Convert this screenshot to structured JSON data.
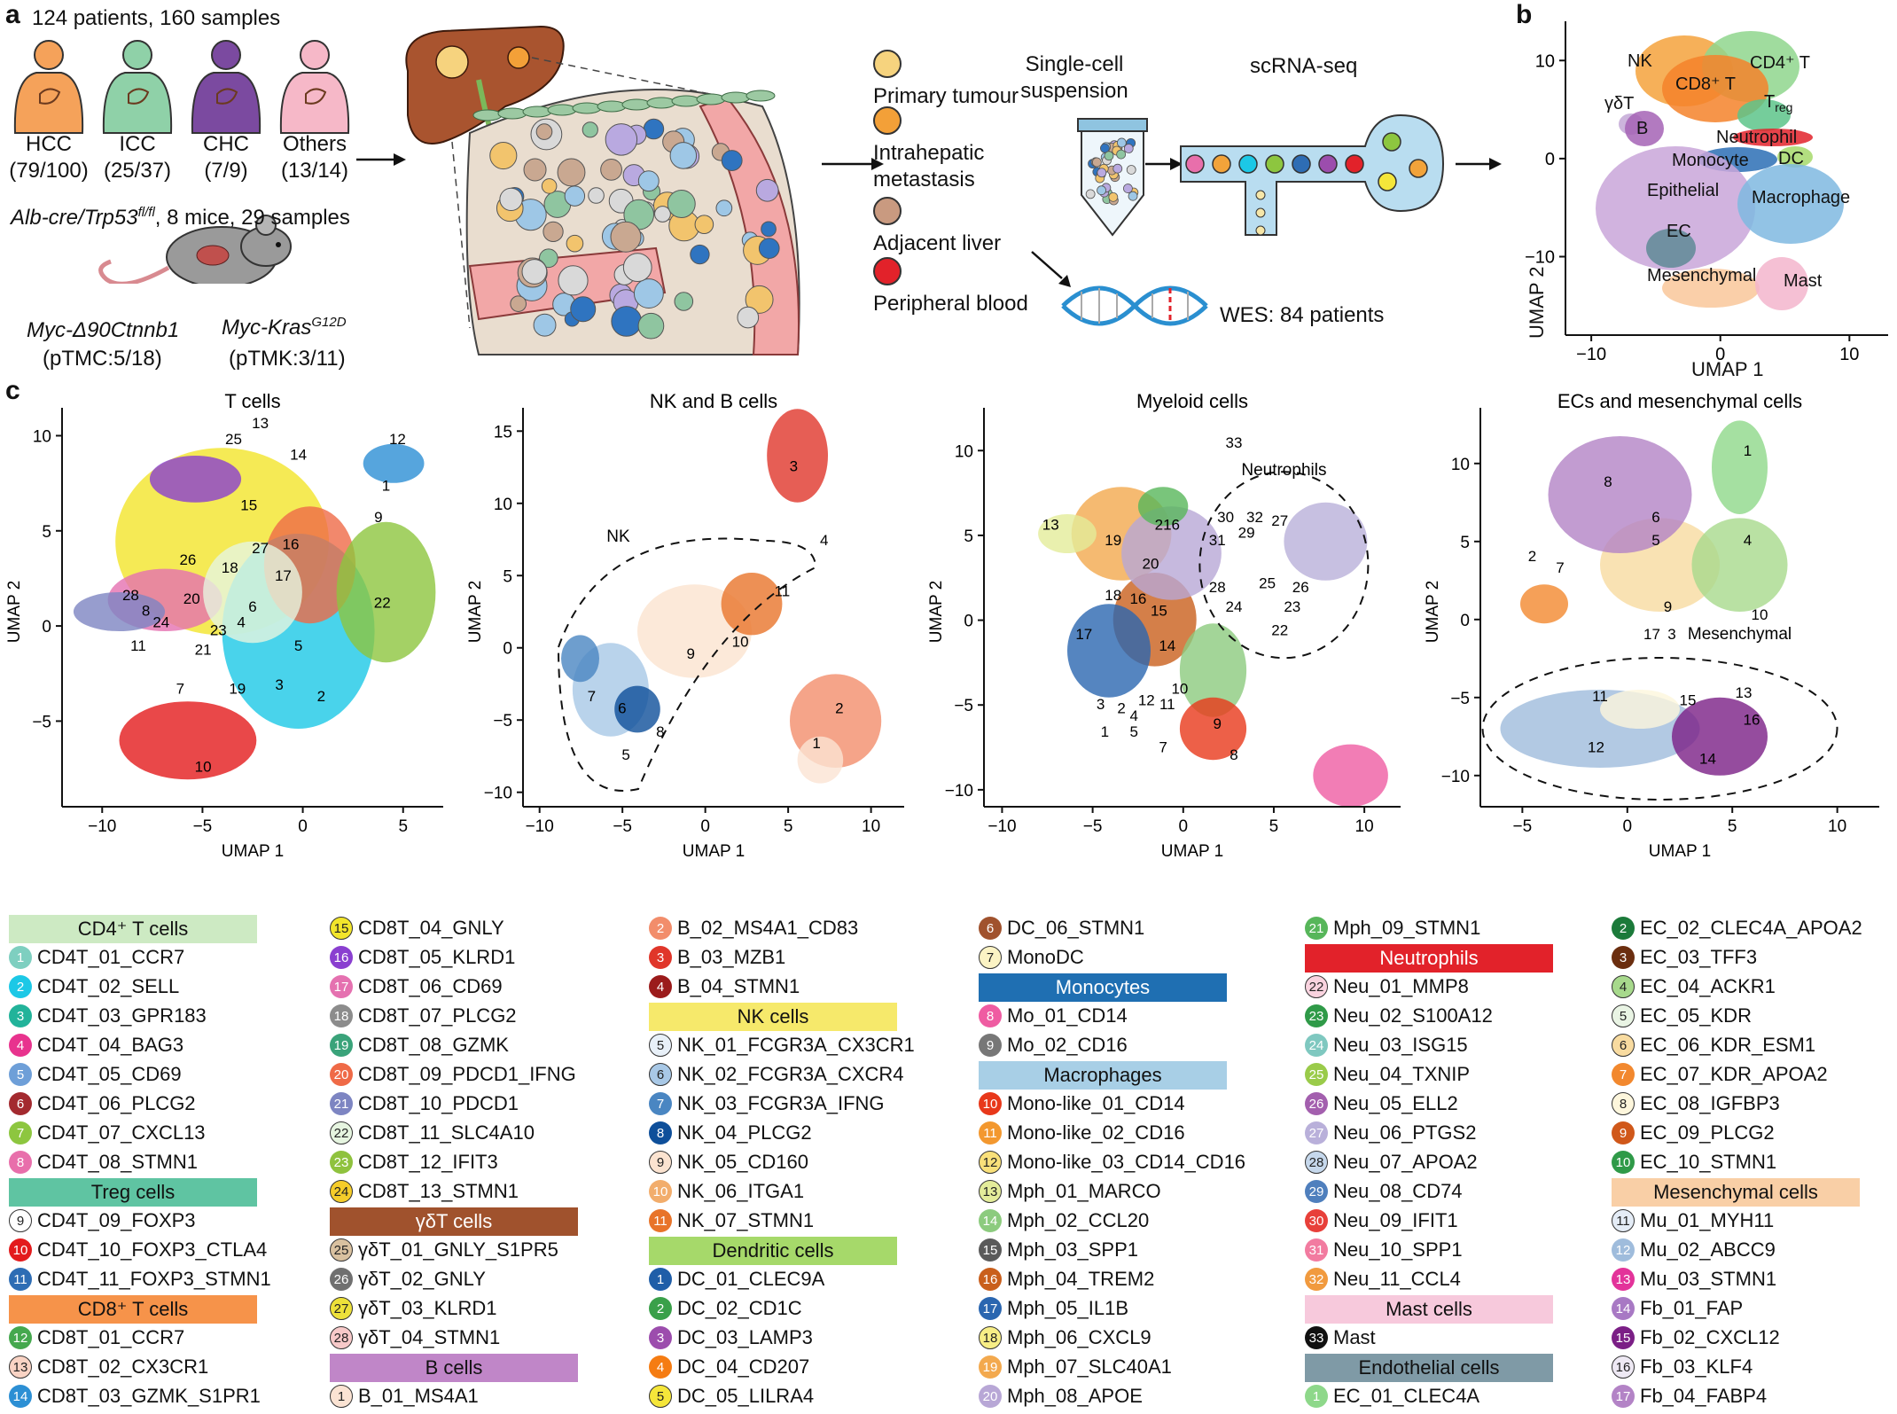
{
  "panel_a": {
    "label": "a",
    "cohort_text": "124 patients, 160 samples",
    "tumour_types": [
      {
        "name": "HCC",
        "counts": "(79/100)",
        "color": "#f5a25a"
      },
      {
        "name": "ICC",
        "counts": "(25/37)",
        "color": "#8fd1a8"
      },
      {
        "name": "CHC",
        "counts": "(7/9)",
        "color": "#7b4aa0"
      },
      {
        "name": "Others",
        "counts": "(13/14)",
        "color": "#f6b8c8"
      }
    ],
    "mouse_text_1": "Alb-cre/Trp53",
    "mouse_text_sup": "fl/fl",
    "mouse_text_2": ", 8 mice, 29 samples",
    "model_1_name": "Myc-Δ90Ctnnb1",
    "model_1_counts": "(pTMC:5/18)",
    "model_2_name": "Myc-Kras",
    "model_2_sup": "G12D",
    "model_2_counts": "(pTMK:3/11)",
    "sample_types": [
      {
        "label": "Primary tumour",
        "color": "#f6d37e"
      },
      {
        "label": "Intrahepatic metastasis",
        "color": "#f3a038"
      },
      {
        "label": "Adjacent liver",
        "color": "#c99a80"
      },
      {
        "label": "Peripheral blood",
        "color": "#e2222a"
      }
    ],
    "sample_type_lines": {
      "im1": "Intrahepatic",
      "im2": "metastasis"
    },
    "single_cell_1": "Single-cell",
    "single_cell_2": "suspension",
    "scrna": "scRNA-seq",
    "wes": "WES: 84 patients"
  },
  "panel_b": {
    "label": "b",
    "xlabel": "UMAP 1",
    "ylabel": "UMAP 2",
    "xticks": [
      "−10",
      "0",
      "10"
    ],
    "yticks": [
      "10",
      "0",
      "−10"
    ],
    "clusters": [
      {
        "name": "NK",
        "color": "#f5a23c"
      },
      {
        "name": "CD4⁺ T",
        "color": "#8fd68d"
      },
      {
        "name": "CD8⁺ T",
        "color": "#f5822a"
      },
      {
        "name": "γδT",
        "color": "#c3a8d6"
      },
      {
        "name": "B",
        "color": "#a463b5"
      },
      {
        "name": "Treg",
        "color": "#5dc48a"
      },
      {
        "name": "Neutrophil",
        "color": "#e2222a"
      },
      {
        "name": "Monocyte",
        "color": "#2b6fb5"
      },
      {
        "name": "DC",
        "color": "#a6d96a"
      },
      {
        "name": "Epithelial",
        "color": "#c9a6d9"
      },
      {
        "name": "Macrophage",
        "color": "#7fb8e0"
      },
      {
        "name": "EC",
        "color": "#5f8a96"
      },
      {
        "name": "Mesenchymal",
        "color": "#f9c79a"
      },
      {
        "name": "Mast",
        "color": "#f3b5cc"
      }
    ],
    "treg_main": "T",
    "treg_sub": "reg"
  },
  "panel_c": {
    "label": "c",
    "plots": [
      {
        "title": "T cells",
        "xlabel": "UMAP 1",
        "ylabel": "UMAP 2",
        "xticks": [
          "−10",
          "−5",
          "0",
          "5"
        ],
        "yticks": [
          "10",
          "5",
          "0",
          "−5"
        ],
        "cluster_labels": [
          "13",
          "25",
          "14",
          "12",
          "1",
          "9",
          "15",
          "27",
          "16",
          "26",
          "18",
          "17",
          "28",
          "8",
          "20",
          "6",
          "24",
          "22",
          "4",
          "23",
          "11",
          "21",
          "5",
          "7",
          "19",
          "3",
          "2",
          "10"
        ]
      },
      {
        "title": "NK and B cells",
        "xlabel": "UMAP 1",
        "ylabel": "UMAP 2",
        "xticks": [
          "−10",
          "−5",
          "0",
          "5",
          "10"
        ],
        "yticks": [
          "15",
          "10",
          "5",
          "0",
          "−5",
          "−10"
        ],
        "annotation": "NK",
        "cluster_labels": [
          "3",
          "4",
          "11",
          "10",
          "9",
          "7",
          "6",
          "8",
          "5",
          "2",
          "1"
        ]
      },
      {
        "title": "Myeloid cells",
        "xlabel": "UMAP 1",
        "ylabel": "UMAP 2",
        "xticks": [
          "−10",
          "−5",
          "0",
          "5",
          "10"
        ],
        "yticks": [
          "10",
          "5",
          "0",
          "−5",
          "−10"
        ],
        "annotation": "Neutrophils",
        "cluster_labels": [
          "33",
          "13",
          "19",
          "21",
          "6",
          "30",
          "32",
          "27",
          "29",
          "31",
          "20",
          "18",
          "16",
          "15",
          "28",
          "24",
          "25",
          "26",
          "23",
          "22",
          "17",
          "14",
          "10",
          "3",
          "2",
          "12",
          "11",
          "4",
          "1",
          "5",
          "9",
          "7",
          "8"
        ]
      },
      {
        "title": "ECs and mesenchymal cells",
        "xlabel": "UMAP 1",
        "ylabel": "UMAP 2",
        "xticks": [
          "−5",
          "0",
          "5",
          "10"
        ],
        "yticks": [
          "10",
          "5",
          "0",
          "−5",
          "−10"
        ],
        "annotation": "Mesenchymal",
        "cluster_labels": [
          "1",
          "8",
          "6",
          "5",
          "4",
          "2",
          "7",
          "9",
          "10",
          "17",
          "3",
          "11",
          "15",
          "13",
          "16",
          "12",
          "14"
        ]
      }
    ]
  },
  "legend": {
    "columns": [
      [
        {
          "type": "header",
          "label": "CD4⁺ T cells",
          "color": "#cdeac3"
        },
        {
          "n": "1",
          "label": "CD4T_01_CCR7",
          "color": "#7ecfc0"
        },
        {
          "n": "2",
          "label": "CD4T_02_SELL",
          "color": "#1cc8e6"
        },
        {
          "n": "3",
          "label": "CD4T_03_GPR183",
          "color": "#22b39a"
        },
        {
          "n": "4",
          "label": "CD4T_04_BAG3",
          "color": "#e8338e"
        },
        {
          "n": "5",
          "label": "CD4T_05_CD69",
          "color": "#6e9fd8"
        },
        {
          "n": "6",
          "label": "CD4T_06_PLCG2",
          "color": "#a32a2f"
        },
        {
          "n": "7",
          "label": "CD4T_07_CXCL13",
          "color": "#8dc63f"
        },
        {
          "n": "8",
          "label": "CD4T_08_STMN1",
          "color": "#e86fab"
        },
        {
          "type": "header",
          "label": "Treg cells",
          "color": "#5fc4a2",
          "sub": true
        },
        {
          "n": "9",
          "label": "CD4T_09_FOXP3",
          "color": "#ffffff",
          "light": true
        },
        {
          "n": "10",
          "label": "CD4T_10_FOXP3_CTLA4",
          "color": "#e31a1c"
        },
        {
          "n": "11",
          "label": "CD4T_11_FOXP3_STMN1",
          "color": "#2e6db4"
        },
        {
          "type": "header",
          "label": "CD8⁺ T cells",
          "color": "#f6934a"
        },
        {
          "n": "12",
          "label": "CD8T_01_CCR7",
          "color": "#45a84e"
        },
        {
          "n": "13",
          "label": "CD8T_02_CX3CR1",
          "color": "#f9d3c4",
          "light": true
        },
        {
          "n": "14",
          "label": "CD8T_03_GZMK_S1PR1",
          "color": "#2c8fd4"
        }
      ],
      [
        {
          "n": "15",
          "label": "CD8T_04_GNLY",
          "color": "#f2e52b",
          "light": true
        },
        {
          "n": "16",
          "label": "CD8T_05_KLRD1",
          "color": "#8a3fd0"
        },
        {
          "n": "17",
          "label": "CD8T_06_CD69",
          "color": "#e571b0"
        },
        {
          "n": "18",
          "label": "CD8T_07_PLCG2",
          "color": "#8c8c8c"
        },
        {
          "n": "19",
          "label": "CD8T_08_GZMK",
          "color": "#3aa37a"
        },
        {
          "n": "20",
          "label": "CD8T_09_PDCD1_IFNG",
          "color": "#ef6a47"
        },
        {
          "n": "21",
          "label": "CD8T_10_PDCD1",
          "color": "#7d85c2"
        },
        {
          "n": "22",
          "label": "CD8T_11_SLC4A10",
          "color": "#e6f5e0",
          "light": true
        },
        {
          "n": "23",
          "label": "CD8T_12_IFIT3",
          "color": "#8fc23e"
        },
        {
          "n": "24",
          "label": "CD8T_13_STMN1",
          "color": "#f5cc2a",
          "light": true
        },
        {
          "type": "header",
          "label": "γδT cells",
          "color": "#a0522d",
          "dark": true
        },
        {
          "n": "25",
          "label": "γδT_01_GNLY_S1PR5",
          "color": "#d9c1a0",
          "light": true
        },
        {
          "n": "26",
          "label": "γδT_02_GNLY",
          "color": "#707070"
        },
        {
          "n": "27",
          "label": "γδT_03_KLRD1",
          "color": "#ede13a",
          "light": true
        },
        {
          "n": "28",
          "label": "γδT_04_STMN1",
          "color": "#f7c9c9",
          "light": true
        },
        {
          "type": "header",
          "label": "B cells",
          "color": "#c086c8"
        },
        {
          "n": "1",
          "label": "B_01_MS4A1",
          "color": "#fbe3d3",
          "light": true
        }
      ],
      [
        {
          "n": "2",
          "label": "B_02_MS4A1_CD83",
          "color": "#f28d6b"
        },
        {
          "n": "3",
          "label": "B_03_MZB1",
          "color": "#e0362a"
        },
        {
          "n": "4",
          "label": "B_04_STMN1",
          "color": "#9b1b1b"
        },
        {
          "type": "header",
          "label": "NK cells",
          "color": "#f6e96b"
        },
        {
          "n": "5",
          "label": "NK_01_FCGR3A_CX3CR1",
          "color": "#e8f0f8",
          "light": true
        },
        {
          "n": "6",
          "label": "NK_02_FCGR3A_CXCR4",
          "color": "#a8c8e6",
          "light": true
        },
        {
          "n": "7",
          "label": "NK_03_FCGR3A_IFNG",
          "color": "#4a86c2"
        },
        {
          "n": "8",
          "label": "NK_04_PLCG2",
          "color": "#0e4f9a"
        },
        {
          "n": "9",
          "label": "NK_05_CD160",
          "color": "#fbe3d0",
          "light": true
        },
        {
          "n": "10",
          "label": "NK_06_ITGA1",
          "color": "#f2ad6c"
        },
        {
          "n": "11",
          "label": "NK_07_STMN1",
          "color": "#e8742a"
        },
        {
          "type": "header",
          "label": "Dendritic cells",
          "color": "#a6d96a"
        },
        {
          "n": "1",
          "label": "DC_01_CLEC9A",
          "color": "#1f5ea8"
        },
        {
          "n": "2",
          "label": "DC_02_CD1C",
          "color": "#3aa04a"
        },
        {
          "n": "3",
          "label": "DC_03_LAMP3",
          "color": "#9c4dad"
        },
        {
          "n": "4",
          "label": "DC_04_CD207",
          "color": "#f57c12"
        },
        {
          "n": "5",
          "label": "DC_05_LILRA4",
          "color": "#f5e63a",
          "light": true
        }
      ],
      [
        {
          "n": "6",
          "label": "DC_06_STMN1",
          "color": "#a0522d"
        },
        {
          "n": "7",
          "label": "MonoDC",
          "color": "#fbf3c4",
          "light": true
        },
        {
          "type": "header",
          "label": "Monocytes",
          "color": "#1f6fb2",
          "dark": true
        },
        {
          "n": "8",
          "label": "Mo_01_CD14",
          "color": "#ef5ca2"
        },
        {
          "n": "9",
          "label": "Mo_02_CD16",
          "color": "#777777"
        },
        {
          "type": "header",
          "label": "Macrophages",
          "color": "#a8cfe6"
        },
        {
          "n": "10",
          "label": "Mono-like_01_CD14",
          "color": "#e8381a"
        },
        {
          "n": "11",
          "label": "Mono-like_02_CD16",
          "color": "#f3982f"
        },
        {
          "n": "12",
          "label": "Mono-like_03_CD14_CD16",
          "color": "#f9e07a",
          "light": true
        },
        {
          "n": "13",
          "label": "Mph_01_MARCO",
          "color": "#e3ec9a",
          "light": true
        },
        {
          "n": "14",
          "label": "Mph_02_CCL20",
          "color": "#8ccb7e"
        },
        {
          "n": "15",
          "label": "Mph_03_SPP1",
          "color": "#5a5a5a"
        },
        {
          "n": "16",
          "label": "Mph_04_TREM2",
          "color": "#c95f1c"
        },
        {
          "n": "17",
          "label": "Mph_05_IL1B",
          "color": "#2a66b0"
        },
        {
          "n": "18",
          "label": "Mph_06_CXCL9",
          "color": "#f7ee86",
          "light": true
        },
        {
          "n": "19",
          "label": "Mph_07_SLC40A1",
          "color": "#f3a94e"
        },
        {
          "n": "20",
          "label": "Mph_08_APOE",
          "color": "#b8a7d6"
        }
      ],
      [
        {
          "n": "21",
          "label": "Mph_09_STMN1",
          "color": "#57b65a"
        },
        {
          "type": "header",
          "label": "Neutrophils",
          "color": "#e2222a",
          "dark": true
        },
        {
          "n": "22",
          "label": "Neu_01_MMP8",
          "color": "#f9d3df",
          "light": true
        },
        {
          "n": "23",
          "label": "Neu_02_S100A12",
          "color": "#2f9a48"
        },
        {
          "n": "24",
          "label": "Neu_03_ISG15",
          "color": "#7fc8c0"
        },
        {
          "n": "25",
          "label": "Neu_04_TXNIP",
          "color": "#9acb4a"
        },
        {
          "n": "26",
          "label": "Neu_05_ELL2",
          "color": "#a35fae"
        },
        {
          "n": "27",
          "label": "Neu_06_PTGS2",
          "color": "#b9b0da"
        },
        {
          "n": "28",
          "label": "Neu_07_APOA2",
          "color": "#c6d8ec",
          "light": true
        },
        {
          "n": "29",
          "label": "Neu_08_CD74",
          "color": "#4f7fbd"
        },
        {
          "n": "30",
          "label": "Neu_09_IFIT1",
          "color": "#e8403a"
        },
        {
          "n": "31",
          "label": "Neu_10_SPP1",
          "color": "#f27ba0"
        },
        {
          "n": "32",
          "label": "Neu_11_CCL4",
          "color": "#f19a3e"
        },
        {
          "type": "header",
          "label": "Mast cells",
          "color": "#f7c9dc"
        },
        {
          "n": "33",
          "label": "Mast",
          "color": "#111111"
        },
        {
          "type": "header",
          "label": "Endothelial cells",
          "color": "#7f9aa6"
        },
        {
          "n": "1",
          "label": "EC_01_CLEC4A",
          "color": "#8ed88a"
        }
      ],
      [
        {
          "n": "2",
          "label": "EC_02_CLEC4A_APOA2",
          "color": "#1b7a3a"
        },
        {
          "n": "3",
          "label": "EC_03_TFF3",
          "color": "#6b2e0f"
        },
        {
          "n": "4",
          "label": "EC_04_ACKR1",
          "color": "#a7d98c",
          "light": true
        },
        {
          "n": "5",
          "label": "EC_05_KDR",
          "color": "#e9f4e4",
          "light": true
        },
        {
          "n": "6",
          "label": "EC_06_KDR_ESM1",
          "color": "#f8dba0",
          "light": true
        },
        {
          "n": "7",
          "label": "EC_07_KDR_APOA2",
          "color": "#f2882e"
        },
        {
          "n": "8",
          "label": "EC_08_IGFBP3",
          "color": "#fdf6dc",
          "light": true
        },
        {
          "n": "9",
          "label": "EC_09_PLCG2",
          "color": "#d0581a"
        },
        {
          "n": "10",
          "label": "EC_10_STMN1",
          "color": "#2f9a48"
        },
        {
          "type": "header",
          "label": "Mesenchymal cells",
          "color": "#f9cfa6"
        },
        {
          "n": "11",
          "label": "Mu_01_MYH11",
          "color": "#e4ecf6",
          "light": true
        },
        {
          "n": "12",
          "label": "Mu_02_ABCC9",
          "color": "#9fbcdc"
        },
        {
          "n": "13",
          "label": "Mu_03_STMN1",
          "color": "#e3339a"
        },
        {
          "n": "14",
          "label": "Fb_01_FAP",
          "color": "#a879c4"
        },
        {
          "n": "15",
          "label": "Fb_02_CXCL12",
          "color": "#7b1f86"
        },
        {
          "n": "16",
          "label": "Fb_03_KLF4",
          "color": "#eee9f4",
          "light": true
        },
        {
          "n": "17",
          "label": "Fb_04_FABP4",
          "color": "#b383c6"
        }
      ]
    ]
  }
}
